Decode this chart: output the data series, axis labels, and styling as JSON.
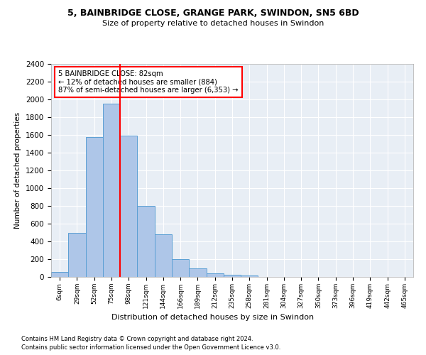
{
  "title1": "5, BAINBRIDGE CLOSE, GRANGE PARK, SWINDON, SN5 6BD",
  "title2": "Size of property relative to detached houses in Swindon",
  "xlabel": "Distribution of detached houses by size in Swindon",
  "ylabel": "Number of detached properties",
  "footnote1": "Contains HM Land Registry data © Crown copyright and database right 2024.",
  "footnote2": "Contains public sector information licensed under the Open Government Licence v3.0.",
  "categories": [
    "6sqm",
    "29sqm",
    "52sqm",
    "75sqm",
    "98sqm",
    "121sqm",
    "144sqm",
    "166sqm",
    "189sqm",
    "212sqm",
    "235sqm",
    "258sqm",
    "281sqm",
    "304sqm",
    "327sqm",
    "350sqm",
    "373sqm",
    "396sqm",
    "419sqm",
    "442sqm",
    "465sqm"
  ],
  "values": [
    60,
    500,
    1580,
    1950,
    1590,
    800,
    480,
    200,
    95,
    38,
    28,
    20,
    0,
    0,
    0,
    0,
    0,
    0,
    0,
    0,
    0
  ],
  "bar_color": "#aec6e8",
  "bar_edge_color": "#5a9fd4",
  "bg_color": "#e8eef5",
  "vline_color": "red",
  "annotation_line1": "5 BAINBRIDGE CLOSE: 82sqm",
  "annotation_line2": "← 12% of detached houses are smaller (884)",
  "annotation_line3": "87% of semi-detached houses are larger (6,353) →",
  "ylim": [
    0,
    2400
  ],
  "yticks": [
    0,
    200,
    400,
    600,
    800,
    1000,
    1200,
    1400,
    1600,
    1800,
    2000,
    2200,
    2400
  ],
  "vline_pos": 3.5
}
